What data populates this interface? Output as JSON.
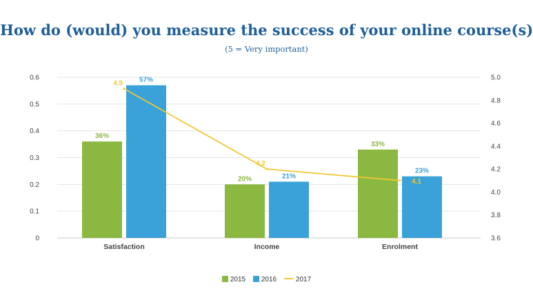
{
  "chart_data": {
    "type": "bar+line",
    "title": "How do (would) you measure the success of your online course(s)?",
    "subtitle": "(5 = Very important)",
    "categories": [
      "Satisfaction",
      "Income",
      "Enrolment"
    ],
    "series": [
      {
        "name": "2015",
        "type": "bar",
        "axis": "left",
        "color": "#8ab840",
        "values": [
          0.36,
          0.2,
          0.33
        ],
        "labels": [
          "36%",
          "20%",
          "33%"
        ]
      },
      {
        "name": "2016",
        "type": "bar",
        "axis": "left",
        "color": "#3aa2d8",
        "values": [
          0.57,
          0.21,
          0.23
        ],
        "labels": [
          "57%",
          "21%",
          "23%"
        ]
      },
      {
        "name": "2017",
        "type": "line",
        "axis": "right",
        "color": "#f2c835",
        "values": [
          4.9,
          4.2,
          4.1
        ],
        "labels": [
          "4.9",
          "4.2",
          "4.1"
        ]
      }
    ],
    "y_left": {
      "min": 0,
      "max": 0.6,
      "ticks": [
        "0",
        "0.1",
        "0.2",
        "0.3",
        "0.4",
        "0.5",
        "0.6"
      ]
    },
    "y_right": {
      "min": 3.6,
      "max": 5.0,
      "ticks": [
        "3.6",
        "3.8",
        "4.0",
        "4.2",
        "4.4",
        "4.6",
        "4.8",
        "5.0"
      ]
    },
    "grid": true,
    "legend_position": "bottom"
  }
}
